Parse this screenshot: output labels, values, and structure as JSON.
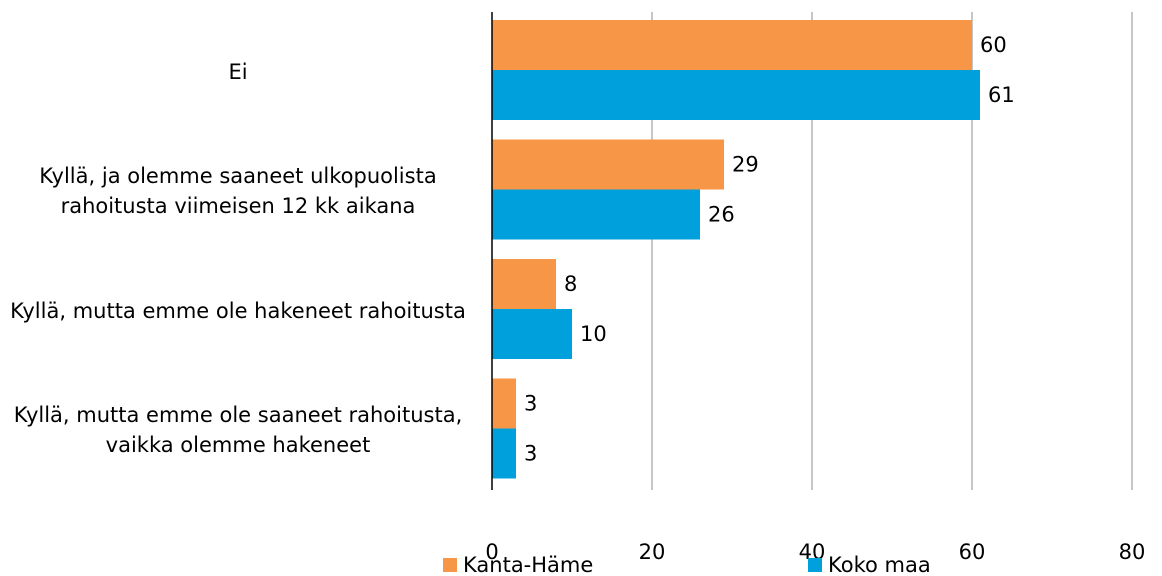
{
  "chart_data": {
    "type": "bar",
    "orientation": "horizontal",
    "categories": [
      "Ei",
      "Kyllä, ja olemme saaneet ulkopuolista rahoitusta viimeisen 12 kk aikana",
      "Kyllä, mutta emme ole hakeneet rahoitusta",
      "Kyllä, mutta emme ole saaneet rahoitusta, vaikka olemme hakeneet"
    ],
    "series": [
      {
        "name": "Kanta-Häme",
        "color": "#f79646",
        "values": [
          60,
          29,
          8,
          3
        ]
      },
      {
        "name": "Koko maa",
        "color": "#00a0dc",
        "values": [
          61,
          26,
          10,
          3
        ]
      }
    ],
    "xlim": [
      0,
      80
    ],
    "xticks": [
      0,
      20,
      40,
      60,
      80
    ],
    "grid": true,
    "legend": "bottom"
  }
}
